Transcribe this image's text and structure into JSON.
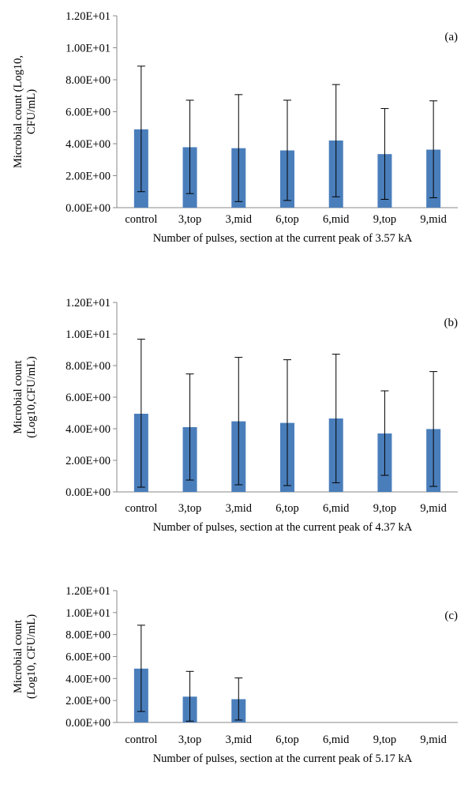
{
  "chart_data": [
    {
      "type": "bar",
      "panel_label": "(a)",
      "categories": [
        "control",
        "3,top",
        "3,mid",
        "6,top",
        "6,mid",
        "9,top",
        "9,mid"
      ],
      "values": [
        4.9,
        3.78,
        3.72,
        3.58,
        4.2,
        3.35,
        3.63
      ],
      "error_upper": [
        8.85,
        6.72,
        7.07,
        6.72,
        7.7,
        6.2,
        6.68
      ],
      "error_lower": [
        1.0,
        0.88,
        0.38,
        0.45,
        0.68,
        0.52,
        0.62
      ],
      "ylabel_lines": [
        "Microbial count (Log10,",
        "CFU/mL)"
      ],
      "xlabel": "Number of pulses, section at the current peak of 3.57 kA",
      "ylim": [
        0,
        12
      ],
      "yticks": [
        "0.00E+00",
        "2.00E+00",
        "4.00E+00",
        "6.00E+00",
        "8.00E+00",
        "1.00E+01",
        "1.20E+01"
      ],
      "bar_color": "#4a7ebb",
      "grid": false
    },
    {
      "type": "bar",
      "panel_label": "(b)",
      "categories": [
        "control",
        "3,top",
        "3,mid",
        "6,top",
        "6,mid",
        "9,top",
        "9,mid"
      ],
      "values": [
        4.95,
        4.1,
        4.47,
        4.37,
        4.65,
        3.7,
        3.98
      ],
      "error_upper": [
        9.67,
        7.47,
        8.52,
        8.37,
        8.72,
        6.4,
        7.62
      ],
      "error_lower": [
        0.3,
        0.75,
        0.45,
        0.4,
        0.58,
        1.05,
        0.35
      ],
      "ylabel_lines": [
        "Microbial count",
        "(Log10,CFU/mL)"
      ],
      "xlabel": "Number of pulses, section at the current peak of 4.37 kA",
      "ylim": [
        0,
        12
      ],
      "yticks": [
        "0.00E+00",
        "2.00E+00",
        "4.00E+00",
        "6.00E+00",
        "8.00E+00",
        "1.00E+01",
        "1.20E+01"
      ],
      "bar_color": "#4a7ebb",
      "grid": false
    },
    {
      "type": "bar",
      "panel_label": "(c)",
      "categories": [
        "control",
        "3,top",
        "3,mid",
        "6,top",
        "6,mid",
        "9,top",
        "9,mid"
      ],
      "values": [
        4.9,
        2.35,
        2.12,
        0,
        0,
        0,
        0
      ],
      "error_upper": [
        8.85,
        4.65,
        4.05,
        null,
        null,
        null,
        null
      ],
      "error_lower": [
        1.0,
        0.12,
        0.22,
        null,
        null,
        null,
        null
      ],
      "ylabel_lines": [
        "Microbial count",
        "(Log10, CFU/mL)"
      ],
      "xlabel": "Number of pulses, section at the current peak of 5.17 kA",
      "ylim": [
        0,
        12
      ],
      "yticks": [
        "0.00E+00",
        "2.00E+00",
        "4.00E+00",
        "6.00E+00",
        "8.00E+00",
        "1.00E+01",
        "1.20E+01"
      ],
      "bar_color": "#4a7ebb",
      "grid": false
    }
  ]
}
